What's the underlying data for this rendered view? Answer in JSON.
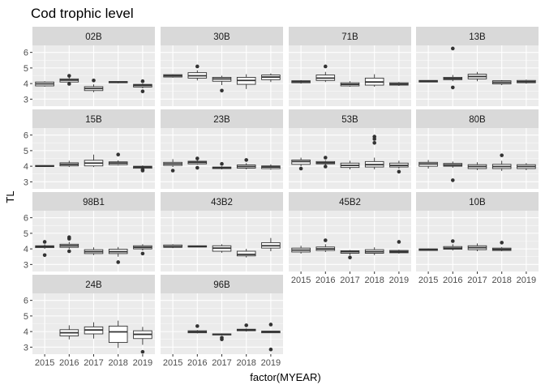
{
  "chart_data": {
    "type": "boxplot",
    "title": "Cod trophic level",
    "xlabel": "factor(MYEAR)",
    "ylabel": "TL",
    "categories": [
      "2015",
      "2016",
      "2017",
      "2018",
      "2019"
    ],
    "yticks": [
      3,
      4,
      5,
      6
    ],
    "ylim": [
      2.55,
      6.45
    ],
    "layout": "facet_wrap 4 columns",
    "colors": {
      "panel_bg": "#EBEBEB",
      "strip_bg": "#D9D9D9",
      "grid": "#FFFFFF",
      "box_line": "#333333",
      "box_fill": "#FFFFFF"
    },
    "panels": [
      {
        "name": "02B",
        "boxes": [
          {
            "x": "2015",
            "q1": 3.85,
            "median": 3.98,
            "q3": 4.1,
            "lo": 3.8,
            "hi": 4.15,
            "outliers": []
          },
          {
            "x": "2016",
            "q1": 4.1,
            "median": 4.22,
            "q3": 4.3,
            "lo": 4.05,
            "hi": 4.4,
            "outliers": [
              4.5,
              3.98
            ]
          },
          {
            "x": "2017",
            "q1": 3.55,
            "median": 3.68,
            "q3": 3.8,
            "lo": 3.45,
            "hi": 3.95,
            "outliers": [
              4.2
            ]
          },
          {
            "x": "2018",
            "q1": 4.05,
            "median": 4.1,
            "q3": 4.13,
            "lo": 4.02,
            "hi": 4.15,
            "outliers": []
          },
          {
            "x": "2019",
            "q1": 3.78,
            "median": 3.88,
            "q3": 3.95,
            "lo": 3.7,
            "hi": 4.0,
            "outliers": [
              4.15,
              3.5
            ]
          }
        ]
      },
      {
        "name": "30B",
        "boxes": [
          {
            "x": "2015",
            "q1": 4.42,
            "median": 4.5,
            "q3": 4.57,
            "lo": 4.38,
            "hi": 4.6,
            "outliers": []
          },
          {
            "x": "2016",
            "q1": 4.35,
            "median": 4.5,
            "q3": 4.7,
            "lo": 4.2,
            "hi": 4.85,
            "outliers": [
              5.1
            ]
          },
          {
            "x": "2017",
            "q1": 4.15,
            "median": 4.3,
            "q3": 4.4,
            "lo": 3.9,
            "hi": 4.5,
            "outliers": [
              3.55
            ]
          },
          {
            "x": "2018",
            "q1": 3.95,
            "median": 4.2,
            "q3": 4.4,
            "lo": 3.65,
            "hi": 4.6,
            "outliers": []
          },
          {
            "x": "2019",
            "q1": 4.25,
            "median": 4.42,
            "q3": 4.55,
            "lo": 4.1,
            "hi": 4.65,
            "outliers": []
          }
        ]
      },
      {
        "name": "71B",
        "boxes": [
          {
            "x": "2015",
            "q1": 4.05,
            "median": 4.12,
            "q3": 4.18,
            "lo": 4.0,
            "hi": 4.22,
            "outliers": []
          },
          {
            "x": "2016",
            "q1": 4.2,
            "median": 4.35,
            "q3": 4.55,
            "lo": 4.1,
            "hi": 4.75,
            "outliers": [
              5.1
            ]
          },
          {
            "x": "2017",
            "q1": 3.85,
            "median": 3.95,
            "q3": 4.05,
            "lo": 3.8,
            "hi": 4.15,
            "outliers": []
          },
          {
            "x": "2018",
            "q1": 3.9,
            "median": 4.1,
            "q3": 4.35,
            "lo": 3.8,
            "hi": 4.6,
            "outliers": []
          },
          {
            "x": "2019",
            "q1": 3.9,
            "median": 3.97,
            "q3": 4.05,
            "lo": 3.85,
            "hi": 4.1,
            "outliers": []
          }
        ]
      },
      {
        "name": "13B",
        "boxes": [
          {
            "x": "2015",
            "q1": 4.1,
            "median": 4.15,
            "q3": 4.2,
            "lo": 4.08,
            "hi": 4.22,
            "outliers": []
          },
          {
            "x": "2016",
            "q1": 4.25,
            "median": 4.32,
            "q3": 4.4,
            "lo": 4.15,
            "hi": 4.55,
            "outliers": [
              6.25,
              3.75
            ]
          },
          {
            "x": "2017",
            "q1": 4.3,
            "median": 4.45,
            "q3": 4.6,
            "lo": 4.15,
            "hi": 4.75,
            "outliers": []
          },
          {
            "x": "2018",
            "q1": 3.98,
            "median": 4.08,
            "q3": 4.18,
            "lo": 3.9,
            "hi": 4.22,
            "outliers": []
          },
          {
            "x": "2019",
            "q1": 4.05,
            "median": 4.12,
            "q3": 4.2,
            "lo": 4.0,
            "hi": 4.25,
            "outliers": []
          }
        ]
      },
      {
        "name": "15B",
        "boxes": [
          {
            "x": "2015",
            "q1": 3.98,
            "median": 4.0,
            "q3": 4.05,
            "lo": 3.95,
            "hi": 4.07,
            "outliers": []
          },
          {
            "x": "2016",
            "q1": 4.02,
            "median": 4.12,
            "q3": 4.22,
            "lo": 3.95,
            "hi": 4.35,
            "outliers": []
          },
          {
            "x": "2017",
            "q1": 4.02,
            "median": 4.2,
            "q3": 4.38,
            "lo": 3.95,
            "hi": 4.75,
            "outliers": []
          },
          {
            "x": "2018",
            "q1": 4.1,
            "median": 4.2,
            "q3": 4.28,
            "lo": 4.05,
            "hi": 4.38,
            "outliers": [
              4.75
            ]
          },
          {
            "x": "2019",
            "q1": 3.87,
            "median": 3.95,
            "q3": 4.0,
            "lo": 3.8,
            "hi": 4.05,
            "outliers": [
              3.72,
              3.8
            ]
          }
        ]
      },
      {
        "name": "23B",
        "boxes": [
          {
            "x": "2015",
            "q1": 4.05,
            "median": 4.15,
            "q3": 4.25,
            "lo": 3.95,
            "hi": 4.45,
            "outliers": [
              3.72
            ]
          },
          {
            "x": "2016",
            "q1": 4.15,
            "median": 4.25,
            "q3": 4.32,
            "lo": 4.1,
            "hi": 4.4,
            "outliers": [
              4.5,
              3.9
            ]
          },
          {
            "x": "2017",
            "q1": 3.85,
            "median": 3.9,
            "q3": 3.95,
            "lo": 3.8,
            "hi": 4.0,
            "outliers": [
              4.15
            ]
          },
          {
            "x": "2018",
            "q1": 3.88,
            "median": 3.98,
            "q3": 4.08,
            "lo": 3.8,
            "hi": 4.2,
            "outliers": [
              4.4
            ]
          },
          {
            "x": "2019",
            "q1": 3.85,
            "median": 3.95,
            "q3": 4.02,
            "lo": 3.78,
            "hi": 4.12,
            "outliers": []
          }
        ]
      },
      {
        "name": "53B",
        "boxes": [
          {
            "x": "2015",
            "q1": 4.12,
            "median": 4.3,
            "q3": 4.4,
            "lo": 4.0,
            "hi": 4.55,
            "outliers": [
              3.85
            ]
          },
          {
            "x": "2016",
            "q1": 4.15,
            "median": 4.22,
            "q3": 4.3,
            "lo": 4.05,
            "hi": 4.38,
            "outliers": [
              4.55,
              3.98
            ]
          },
          {
            "x": "2017",
            "q1": 3.92,
            "median": 4.05,
            "q3": 4.2,
            "lo": 3.8,
            "hi": 4.35,
            "outliers": []
          },
          {
            "x": "2018",
            "q1": 3.95,
            "median": 4.1,
            "q3": 4.3,
            "lo": 3.8,
            "hi": 4.55,
            "outliers": [
              5.9,
              5.75,
              5.5
            ]
          },
          {
            "x": "2019",
            "q1": 3.95,
            "median": 4.05,
            "q3": 4.2,
            "lo": 3.85,
            "hi": 4.35,
            "outliers": [
              3.65
            ]
          }
        ]
      },
      {
        "name": "80B",
        "boxes": [
          {
            "x": "2015",
            "q1": 4.0,
            "median": 4.15,
            "q3": 4.25,
            "lo": 3.85,
            "hi": 4.4,
            "outliers": []
          },
          {
            "x": "2016",
            "q1": 4.0,
            "median": 4.08,
            "q3": 4.18,
            "lo": 3.9,
            "hi": 4.3,
            "outliers": [
              3.1
            ]
          },
          {
            "x": "2017",
            "q1": 3.85,
            "median": 3.98,
            "q3": 4.1,
            "lo": 3.75,
            "hi": 4.25,
            "outliers": []
          },
          {
            "x": "2018",
            "q1": 3.85,
            "median": 3.98,
            "q3": 4.12,
            "lo": 3.7,
            "hi": 4.35,
            "outliers": [
              4.7
            ]
          },
          {
            "x": "2019",
            "q1": 3.85,
            "median": 3.98,
            "q3": 4.1,
            "lo": 3.75,
            "hi": 4.2,
            "outliers": []
          }
        ]
      },
      {
        "name": "98B1",
        "boxes": [
          {
            "x": "2015",
            "q1": 4.08,
            "median": 4.15,
            "q3": 4.2,
            "lo": 4.0,
            "hi": 4.3,
            "outliers": [
              4.45,
              3.6
            ]
          },
          {
            "x": "2016",
            "q1": 4.1,
            "median": 4.2,
            "q3": 4.3,
            "lo": 4.0,
            "hi": 4.45,
            "outliers": [
              4.75,
              4.65,
              3.85
            ]
          },
          {
            "x": "2017",
            "q1": 3.7,
            "median": 3.82,
            "q3": 3.95,
            "lo": 3.6,
            "hi": 4.1,
            "outliers": []
          },
          {
            "x": "2018",
            "q1": 3.7,
            "median": 3.82,
            "q3": 3.98,
            "lo": 3.5,
            "hi": 4.12,
            "outliers": [
              3.15
            ]
          },
          {
            "x": "2019",
            "q1": 4.0,
            "median": 4.1,
            "q3": 4.2,
            "lo": 3.9,
            "hi": 4.3,
            "outliers": [
              3.7
            ]
          }
        ]
      },
      {
        "name": "43B2",
        "boxes": [
          {
            "x": "2015",
            "q1": 4.1,
            "median": 4.15,
            "q3": 4.25,
            "lo": 4.05,
            "hi": 4.3,
            "outliers": []
          },
          {
            "x": "2016",
            "q1": 4.12,
            "median": 4.15,
            "q3": 4.2,
            "lo": 4.1,
            "hi": 4.22,
            "outliers": []
          },
          {
            "x": "2017",
            "q1": 3.85,
            "median": 4.05,
            "q3": 4.2,
            "lo": 3.75,
            "hi": 4.3,
            "outliers": []
          },
          {
            "x": "2018",
            "q1": 3.55,
            "median": 3.65,
            "q3": 3.85,
            "lo": 3.45,
            "hi": 4.0,
            "outliers": []
          },
          {
            "x": "2019",
            "q1": 4.05,
            "median": 4.2,
            "q3": 4.4,
            "lo": 3.85,
            "hi": 4.7,
            "outliers": []
          }
        ]
      },
      {
        "name": "45B2",
        "boxes": [
          {
            "x": "2015",
            "q1": 3.8,
            "median": 3.92,
            "q3": 4.05,
            "lo": 3.7,
            "hi": 4.2,
            "outliers": []
          },
          {
            "x": "2016",
            "q1": 3.9,
            "median": 4.0,
            "q3": 4.12,
            "lo": 3.8,
            "hi": 4.3,
            "outliers": [
              4.55
            ]
          },
          {
            "x": "2017",
            "q1": 3.72,
            "median": 3.82,
            "q3": 3.88,
            "lo": 3.6,
            "hi": 3.92,
            "outliers": [
              3.45
            ]
          },
          {
            "x": "2018",
            "q1": 3.72,
            "median": 3.82,
            "q3": 3.95,
            "lo": 3.6,
            "hi": 4.1,
            "outliers": []
          },
          {
            "x": "2019",
            "q1": 3.75,
            "median": 3.82,
            "q3": 3.9,
            "lo": 3.7,
            "hi": 3.95,
            "outliers": [
              4.45
            ]
          }
        ]
      },
      {
        "name": "10B",
        "boxes": [
          {
            "x": "2015",
            "q1": 3.9,
            "median": 3.95,
            "q3": 4.0,
            "lo": 3.88,
            "hi": 4.02,
            "outliers": []
          },
          {
            "x": "2016",
            "q1": 3.98,
            "median": 4.05,
            "q3": 4.15,
            "lo": 3.9,
            "hi": 4.3,
            "outliers": [
              4.5
            ]
          },
          {
            "x": "2017",
            "q1": 3.95,
            "median": 4.08,
            "q3": 4.2,
            "lo": 3.85,
            "hi": 4.35,
            "outliers": []
          },
          {
            "x": "2018",
            "q1": 3.9,
            "median": 3.97,
            "q3": 4.05,
            "lo": 3.85,
            "hi": 4.12,
            "outliers": [
              4.4
            ]
          },
          {
            "x": "2019",
            "q1": null,
            "median": null,
            "q3": null,
            "lo": null,
            "hi": null,
            "outliers": []
          }
        ]
      },
      {
        "name": "24B",
        "boxes": [
          {
            "x": "2015",
            "q1": null,
            "median": null,
            "q3": null,
            "lo": null,
            "hi": null,
            "outliers": []
          },
          {
            "x": "2016",
            "q1": 3.72,
            "median": 3.92,
            "q3": 4.12,
            "lo": 3.5,
            "hi": 4.4,
            "outliers": []
          },
          {
            "x": "2017",
            "q1": 3.85,
            "median": 4.1,
            "q3": 4.3,
            "lo": 3.55,
            "hi": 4.6,
            "outliers": []
          },
          {
            "x": "2018",
            "q1": 3.3,
            "median": 3.98,
            "q3": 4.35,
            "lo": 2.95,
            "hi": 4.7,
            "outliers": []
          },
          {
            "x": "2019",
            "q1": 3.55,
            "median": 3.82,
            "q3": 4.05,
            "lo": 3.15,
            "hi": 4.3,
            "outliers": [
              2.7
            ]
          }
        ]
      },
      {
        "name": "96B",
        "boxes": [
          {
            "x": "2015",
            "q1": null,
            "median": null,
            "q3": null,
            "lo": null,
            "hi": null,
            "outliers": []
          },
          {
            "x": "2016",
            "q1": 3.92,
            "median": 3.98,
            "q3": 4.05,
            "lo": 3.88,
            "hi": 4.1,
            "outliers": [
              4.35
            ]
          },
          {
            "x": "2017",
            "q1": 3.78,
            "median": 3.82,
            "q3": 3.85,
            "lo": 3.75,
            "hi": 3.88,
            "outliers": [
              3.6,
              3.5
            ]
          },
          {
            "x": "2018",
            "q1": 4.05,
            "median": 4.1,
            "q3": 4.15,
            "lo": 4.0,
            "hi": 4.2,
            "outliers": [
              4.4
            ]
          },
          {
            "x": "2019",
            "q1": 3.92,
            "median": 3.98,
            "q3": 4.03,
            "lo": 3.9,
            "hi": 4.05,
            "outliers": [
              4.45,
              2.85
            ]
          }
        ]
      }
    ]
  }
}
